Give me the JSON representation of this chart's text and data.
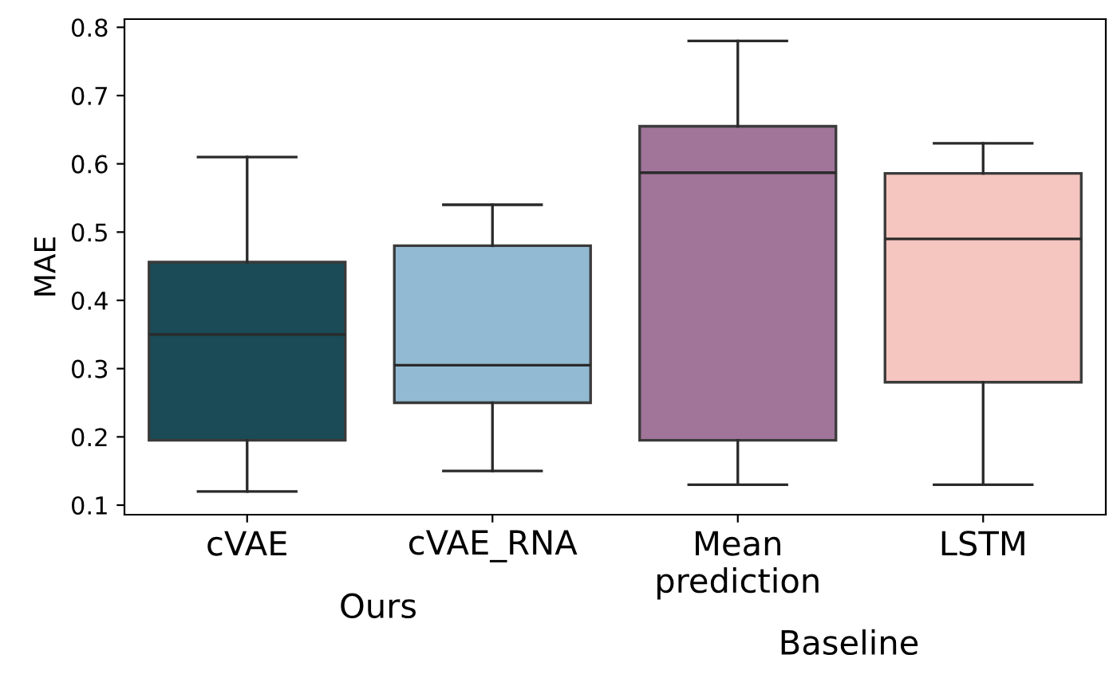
{
  "chart_data": {
    "type": "box",
    "ylabel": "MAE",
    "categories": [
      "cVAE",
      "cVAE_RNA",
      "Mean\nprediction",
      "LSTM"
    ],
    "colors": [
      "#1a4b56",
      "#92bad2",
      "#a17499",
      "#f5c5bf"
    ],
    "boxes": [
      {
        "low": 0.12,
        "q1": 0.195,
        "median": 0.35,
        "q3": 0.456,
        "high": 0.61
      },
      {
        "low": 0.15,
        "q1": 0.25,
        "median": 0.305,
        "q3": 0.48,
        "high": 0.54
      },
      {
        "low": 0.13,
        "q1": 0.195,
        "median": 0.587,
        "q3": 0.655,
        "high": 0.78
      },
      {
        "low": 0.13,
        "q1": 0.28,
        "median": 0.49,
        "q3": 0.586,
        "high": 0.63
      }
    ],
    "ylim": [
      0.086,
      0.812
    ],
    "yticks": [
      0.1,
      0.2,
      0.3,
      0.4,
      0.5,
      0.6,
      0.7,
      0.8
    ],
    "grid": false,
    "annotations": [
      "Ours",
      "Baseline"
    ]
  }
}
